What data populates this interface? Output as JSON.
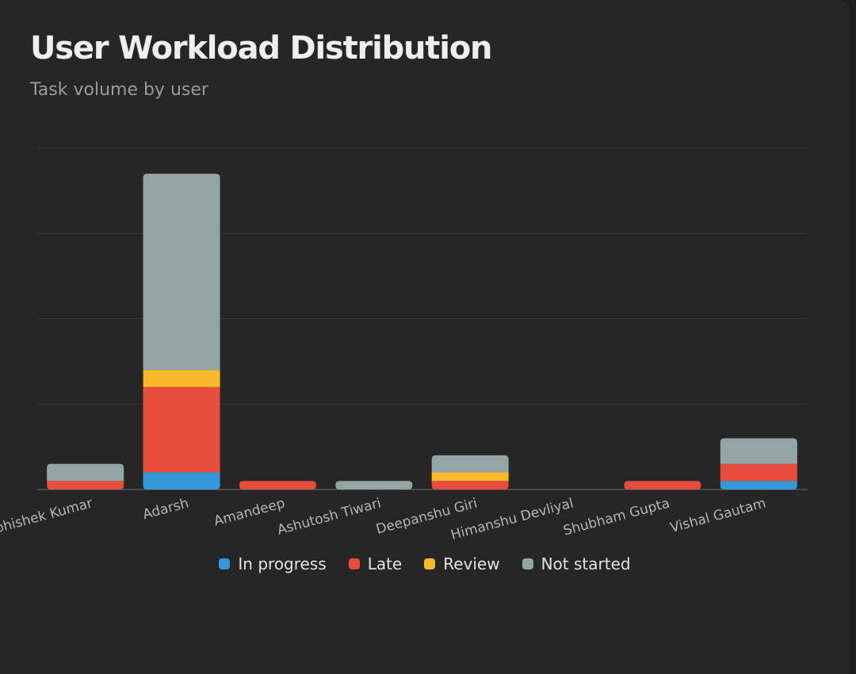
{
  "card": {
    "title": "User Workload Distribution",
    "subtitle": "Task volume by user"
  },
  "chart_data": {
    "type": "bar",
    "stacked": true,
    "title": "User Workload Distribution",
    "subtitle": "Task volume by user",
    "xlabel": "",
    "ylabel": "",
    "grid": true,
    "legend_position": "bottom",
    "categories": [
      "Abhishek Kumar",
      "Adarsh",
      "Amandeep",
      "Ashutosh Tiwari",
      "Deepanshu Giri",
      "Himanshu Devliyal",
      "Shubham Gupta",
      "Vishal Gautam"
    ],
    "ylim": [
      0,
      40
    ],
    "series": [
      {
        "name": "In progress",
        "color": "#3498db",
        "values": [
          0,
          2,
          0,
          0,
          0,
          0,
          0,
          1
        ]
      },
      {
        "name": "Late",
        "color": "#e74c3c",
        "values": [
          1,
          10,
          1,
          0,
          1,
          0,
          1,
          2
        ]
      },
      {
        "name": "Review",
        "color": "#fbb829",
        "values": [
          0,
          2,
          0,
          0,
          1,
          0,
          0,
          0
        ]
      },
      {
        "name": "Not started",
        "color": "#95a5a6",
        "values": [
          2,
          23,
          0,
          1,
          2,
          0,
          0,
          3
        ]
      }
    ]
  }
}
